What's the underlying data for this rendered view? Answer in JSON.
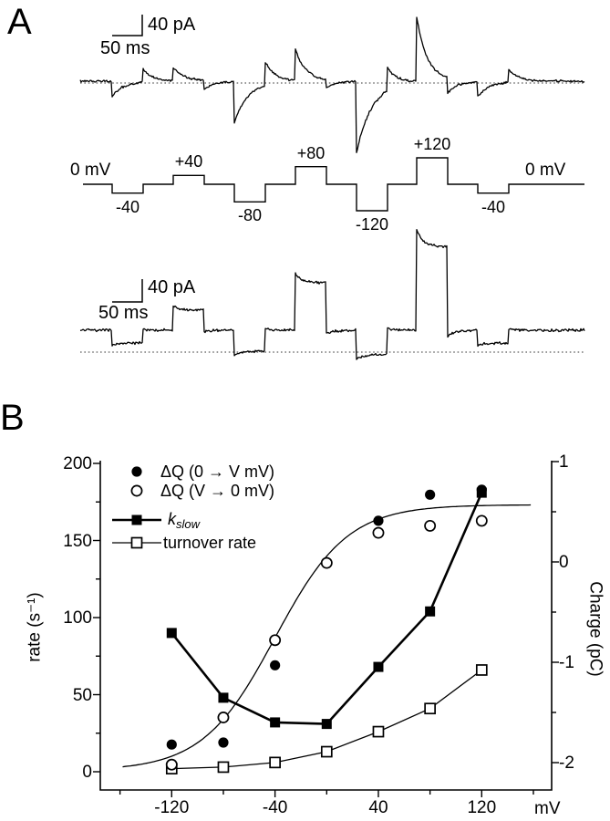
{
  "panelA": {
    "label": "A",
    "scalebar_top": {
      "current": "40 pA",
      "time": "50 ms"
    },
    "scalebar_bottom": {
      "current": "40 pA",
      "time": "50 ms"
    },
    "protocol": {
      "left_label": "0 mV",
      "right_label": "0 mV",
      "baseline_mV": 0,
      "pulses": [
        {
          "mV": -40,
          "label": "-40"
        },
        {
          "mV": 40,
          "label": "+40"
        },
        {
          "mV": -80,
          "label": "-80"
        },
        {
          "mV": 80,
          "label": "+80"
        },
        {
          "mV": -120,
          "label": "-120"
        },
        {
          "mV": 120,
          "label": "+120"
        },
        {
          "mV": -40,
          "label": "-40"
        }
      ]
    }
  },
  "panelB": {
    "label": "B"
  },
  "legend": {
    "kslow_base": "k",
    "kslow_sub": "slow"
  },
  "chart_data": {
    "type": "scatter",
    "x_axis": {
      "unit": "mV",
      "ticks": [
        -120,
        -40,
        40,
        120
      ],
      "minor_ticks": [
        -160,
        -80,
        0,
        80,
        160
      ],
      "range": [
        -175,
        175
      ]
    },
    "left_axis": {
      "label": "rate (s⁻¹)",
      "ticks": [
        0,
        50,
        100,
        150,
        200
      ],
      "minor_ticks": [
        25,
        75,
        125,
        175
      ],
      "range": [
        0,
        200
      ]
    },
    "right_axis": {
      "label": "Charge (pC)",
      "ticks": [
        1,
        0,
        -1,
        -2
      ],
      "minor_ticks": [
        0.5,
        -0.5,
        -1.5
      ],
      "range": [
        -2.3,
        1
      ]
    },
    "series": [
      {
        "name": "ΔQ (0 → V mV)",
        "marker": "filled-circle",
        "axis": "right",
        "connected": false,
        "x": [
          -120,
          -80,
          -40,
          40,
          80,
          120
        ],
        "y": [
          -1.82,
          -1.8,
          -1.03,
          0.41,
          0.67,
          0.72
        ]
      },
      {
        "name": "ΔQ (V → 0 mV)",
        "marker": "open-circle",
        "axis": "right",
        "connected": false,
        "x": [
          -120,
          -80,
          -40,
          0,
          40,
          80,
          120
        ],
        "y": [
          -2.02,
          -1.55,
          -0.78,
          -0.01,
          0.29,
          0.36,
          0.41
        ]
      },
      {
        "name": "k_slow",
        "marker": "filled-square",
        "axis": "left",
        "connected": true,
        "x": [
          -120,
          -80,
          -40,
          0,
          40,
          80,
          120
        ],
        "y": [
          90,
          48,
          32,
          31,
          68,
          104,
          181
        ]
      },
      {
        "name": "turnover rate",
        "marker": "open-square",
        "axis": "left",
        "connected": true,
        "x": [
          -120,
          -80,
          -40,
          0,
          40,
          80,
          120
        ],
        "y": [
          2,
          3,
          6,
          13,
          26,
          41,
          66
        ]
      }
    ],
    "fit_curve": {
      "shape": "boltzmann",
      "axis": "right",
      "A1": -2.08,
      "A2": 0.57,
      "V0": -40,
      "k": 28
    }
  }
}
